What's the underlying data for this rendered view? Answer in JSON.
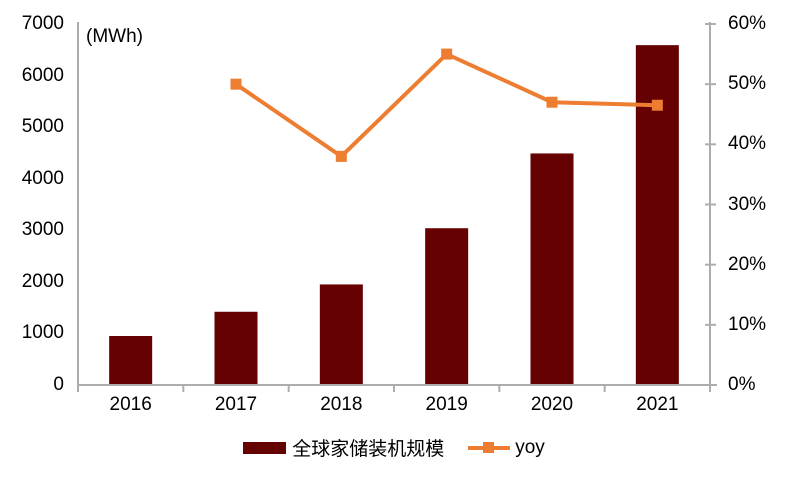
{
  "chart_data": {
    "type": "bar+line combo",
    "categories": [
      "2016",
      "2017",
      "2018",
      "2019",
      "2020",
      "2021"
    ],
    "series": [
      {
        "name": "全球家储装机规模",
        "type": "bar",
        "axis": "left",
        "color": "#650100",
        "values": [
          950,
          1420,
          1950,
          3040,
          4490,
          6590
        ]
      },
      {
        "name": "yoy",
        "type": "line",
        "axis": "right",
        "color": "#ED7D31",
        "values": [
          null,
          50,
          38,
          55,
          47,
          46.5
        ],
        "unit": "%"
      }
    ],
    "left_axis": {
      "unit_label": "(MWh)",
      "min": 0,
      "max": 7000,
      "step": 1000,
      "tick_labels": [
        "0",
        "1000",
        "2000",
        "3000",
        "4000",
        "5000",
        "6000",
        "7000"
      ]
    },
    "right_axis": {
      "min": 0,
      "max": 60,
      "step": 10,
      "tick_labels": [
        "0%",
        "10%",
        "20%",
        "30%",
        "40%",
        "50%",
        "60%"
      ]
    },
    "grid": false,
    "legend_position": "bottom"
  },
  "colors": {
    "axis_line": "#ADADAD",
    "text": "#000000",
    "background": "#FFFFFF"
  }
}
